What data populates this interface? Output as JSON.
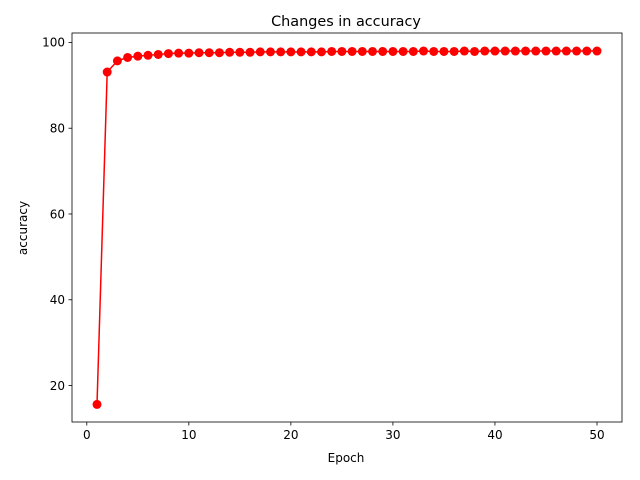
{
  "chart_data": {
    "type": "line",
    "title": "Changes in accuracy",
    "xlabel": "Epoch",
    "ylabel": "accuracy",
    "xlim": [
      -1.45,
      52.45
    ],
    "ylim": [
      11.5,
      102.2
    ],
    "xticks": [
      0,
      10,
      20,
      30,
      40,
      50
    ],
    "yticks": [
      20,
      40,
      60,
      80,
      100
    ],
    "grid": false,
    "legend": "none",
    "series": [
      {
        "color": "#ff0000",
        "marker": "circle",
        "x": [
          1,
          2,
          3,
          4,
          5,
          6,
          7,
          8,
          9,
          10,
          11,
          12,
          13,
          14,
          15,
          16,
          17,
          18,
          19,
          20,
          21,
          22,
          23,
          24,
          25,
          26,
          27,
          28,
          29,
          30,
          31,
          32,
          33,
          34,
          35,
          36,
          37,
          38,
          39,
          40,
          41,
          42,
          43,
          44,
          45,
          46,
          47,
          48,
          49,
          50
        ],
        "values": [
          15.6,
          93.1,
          95.7,
          96.5,
          96.8,
          97.0,
          97.2,
          97.4,
          97.5,
          97.5,
          97.6,
          97.6,
          97.6,
          97.7,
          97.7,
          97.7,
          97.8,
          97.8,
          97.8,
          97.8,
          97.8,
          97.8,
          97.8,
          97.9,
          97.9,
          97.9,
          97.9,
          97.9,
          97.9,
          97.9,
          97.9,
          97.9,
          98.0,
          97.9,
          97.9,
          97.9,
          98.0,
          97.9,
          98.0,
          98.0,
          98.0,
          98.0,
          98.0,
          98.0,
          98.0,
          98.0,
          98.0,
          98.0,
          98.0,
          98.0
        ]
      }
    ]
  }
}
